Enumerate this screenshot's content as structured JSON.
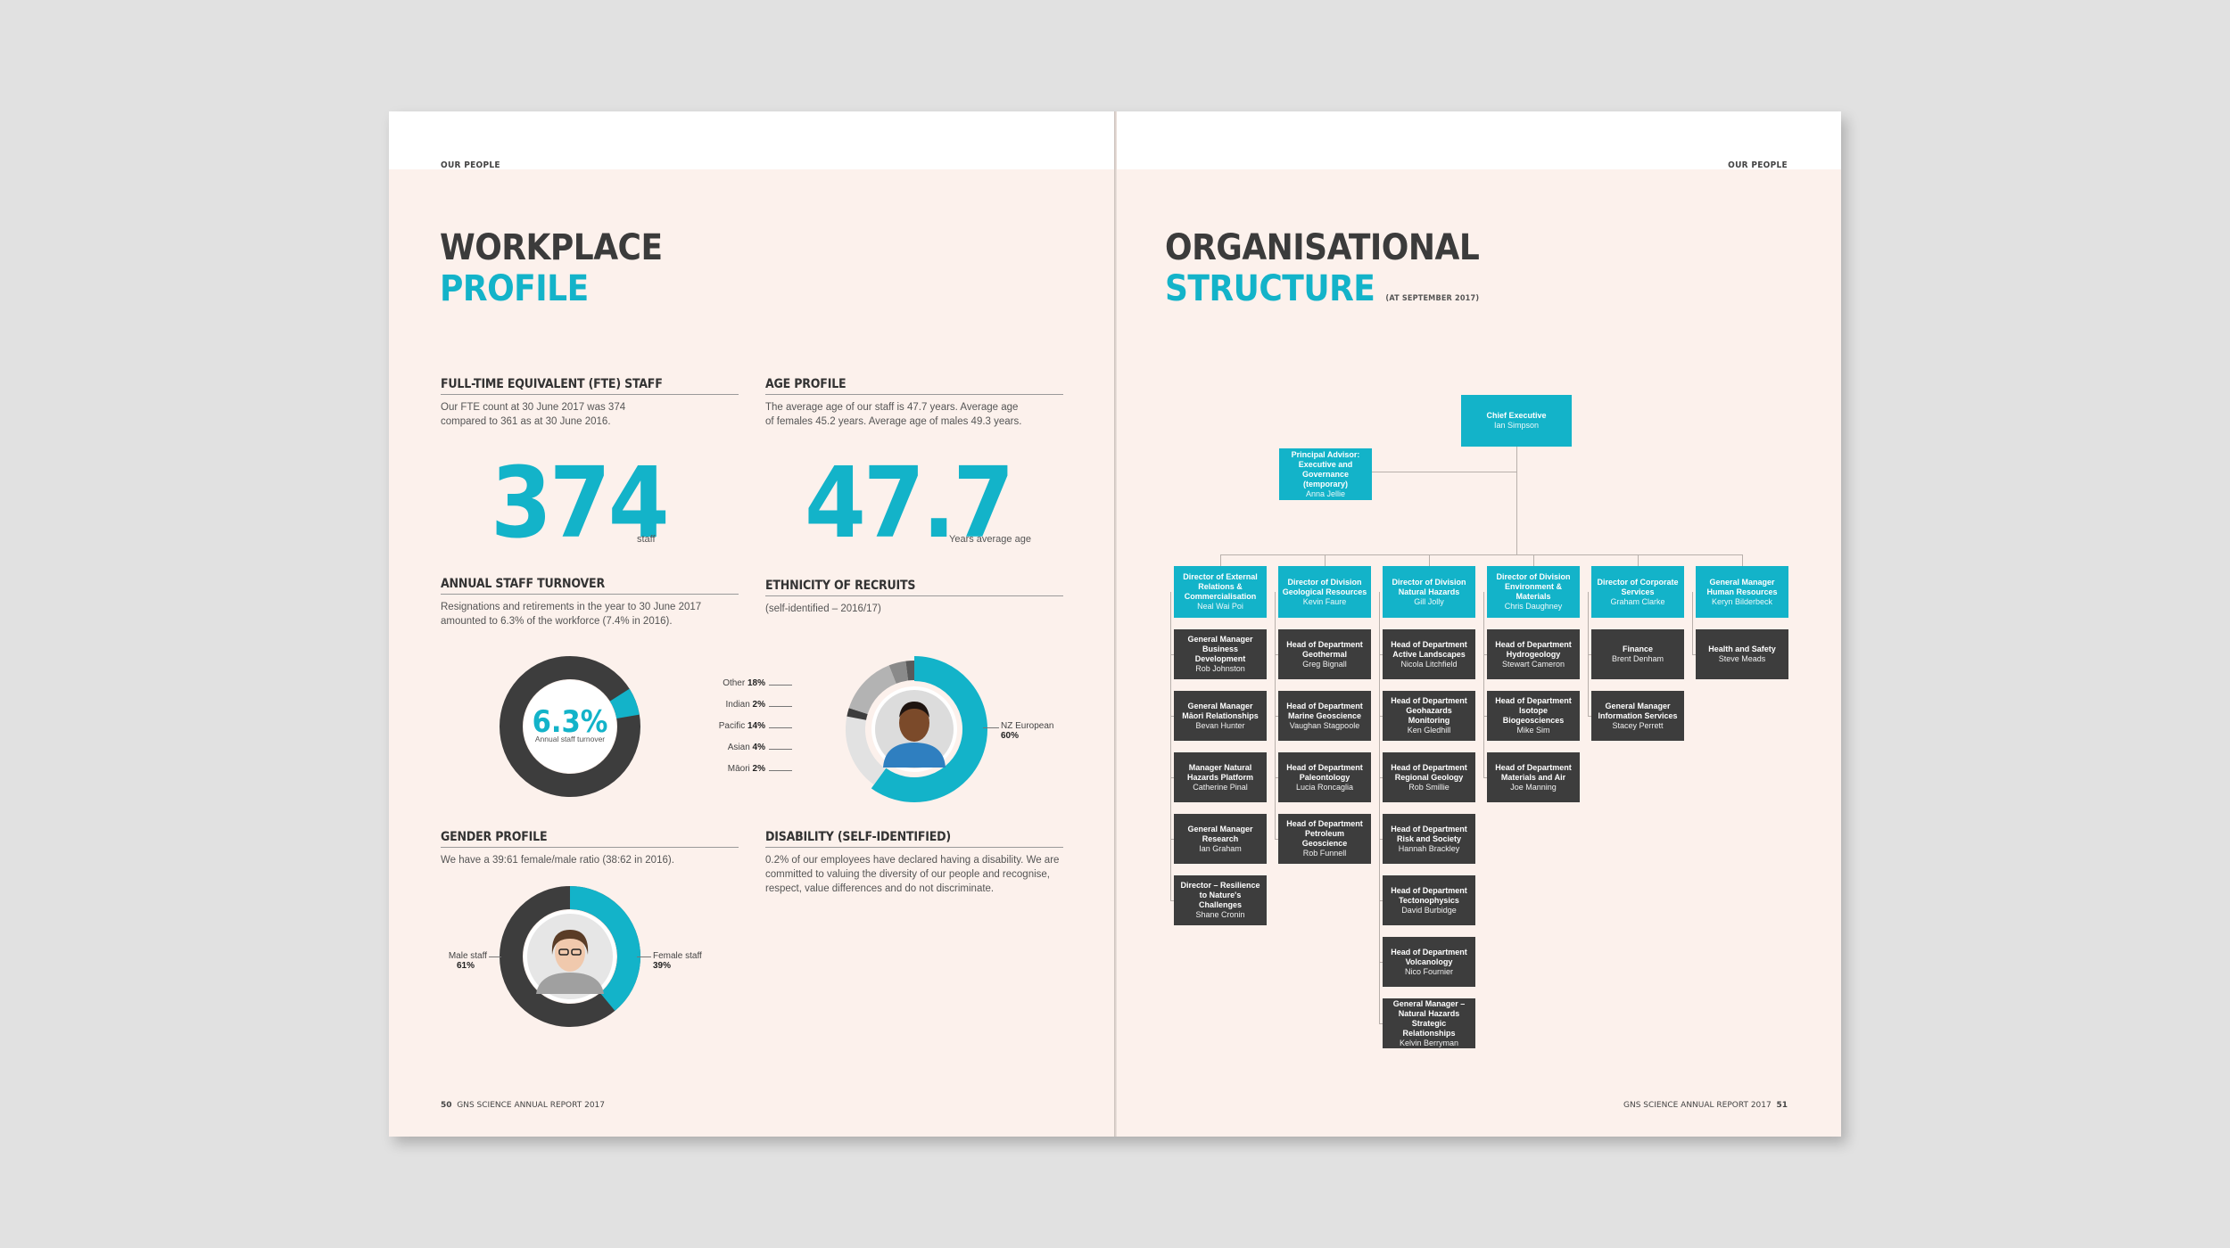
{
  "left": {
    "running_head": "OUR PEOPLE",
    "title_line1": "WORKPLACE",
    "title_line2": "PROFILE",
    "folio_number": "50",
    "folio_text": "GNS SCIENCE ANNUAL REPORT 2017",
    "fte": {
      "heading": "FULL-TIME EQUIVALENT (FTE) STAFF",
      "text": "Our FTE count at 30 June 2017 was 374 compared to 361 as at 30 June 2016.",
      "value": "374",
      "unit": "staff"
    },
    "age": {
      "heading": "AGE PROFILE",
      "text": "The average age of our staff is 47.7 years. Average age of females 45.2 years. Average age of males 49.3 years.",
      "value": "47.7",
      "unit": "Years average age"
    },
    "turnover": {
      "heading": "ANNUAL STAFF TURNOVER",
      "text": "Resignations and retirements in the year to 30 June 2017 amounted to 6.3% of the workforce (7.4% in 2016).",
      "value": "6.3%",
      "caption": "Annual staff turnover",
      "fraction": 0.063
    },
    "ethnicity": {
      "heading": "ETHNICITY OF RECRUITS",
      "text": "(self-identified – 2016/17)",
      "segments": [
        {
          "label": "NZ European",
          "value": "60%",
          "pct": 60,
          "color": "#13b3c9"
        },
        {
          "label": "Other",
          "value": "18%",
          "pct": 18,
          "color": "#e2e2e2"
        },
        {
          "label": "Indian",
          "value": "2%",
          "pct": 2,
          "color": "#3d3d3d"
        },
        {
          "label": "Pacific",
          "value": "14%",
          "pct": 14,
          "color": "#b3b3b3"
        },
        {
          "label": "Asian",
          "value": "4%",
          "pct": 4,
          "color": "#8a8a8a"
        },
        {
          "label": "Māori",
          "value": "2%",
          "pct": 2,
          "color": "#5a5a5a"
        }
      ]
    },
    "gender": {
      "heading": "GENDER PROFILE",
      "text": "We have a 39:61 female/male ratio (38:62 in 2016).",
      "male_label": "Male staff",
      "male_value": "61%",
      "female_label": "Female staff",
      "female_value": "39%",
      "female_fraction": 0.39
    },
    "disability": {
      "heading": "DISABILITY (SELF-IDENTIFIED)",
      "text": "0.2% of our employees have declared having a disability. We are committed to valuing the diversity of our people and recognise, respect, value differences and do not discriminate."
    },
    "colors": {
      "accent": "#13b3c9",
      "dark": "#3d3d3d",
      "page": "#fcf1ec"
    }
  },
  "right": {
    "running_head": "OUR PEOPLE",
    "title_line1": "ORGANISATIONAL",
    "title_line2": "STRUCTURE",
    "title_note": "(AT SEPTEMBER 2017)",
    "folio_number": "51",
    "folio_text": "GNS SCIENCE ANNUAL REPORT 2017",
    "org": {
      "ceo": {
        "role": "Chief Executive",
        "name": "Ian Simpson"
      },
      "advisor": {
        "role": "Principal Advisor: Executive and Governance (temporary)",
        "name": "Anna Jellie"
      },
      "columns": [
        {
          "head": {
            "role": "Director of External Relations & Commercialisation",
            "name": "Neal Wai Poi"
          },
          "reports": [
            {
              "role": "General Manager Business Development",
              "name": "Rob Johnston"
            },
            {
              "role": "General Manager Māori Relationships",
              "name": "Bevan Hunter"
            },
            {
              "role": "Manager Natural Hazards Platform",
              "name": "Catherine Pinal"
            },
            {
              "role": "General Manager Research",
              "name": "Ian Graham"
            },
            {
              "role": "Director – Resilience to Nature's Challenges",
              "name": "Shane Cronin"
            }
          ]
        },
        {
          "head": {
            "role": "Director of Division Geological Resources",
            "name": "Kevin Faure"
          },
          "reports": [
            {
              "role": "Head of Department Geothermal",
              "name": "Greg Bignall"
            },
            {
              "role": "Head of Department Marine Geoscience",
              "name": "Vaughan Stagpoole"
            },
            {
              "role": "Head of Department Paleontology",
              "name": "Lucia Roncaglia"
            },
            {
              "role": "Head of Department Petroleum Geoscience",
              "name": "Rob Funnell"
            }
          ]
        },
        {
          "head": {
            "role": "Director of Division Natural Hazards",
            "name": "Gill Jolly"
          },
          "reports": [
            {
              "role": "Head of Department Active Landscapes",
              "name": "Nicola Litchfield"
            },
            {
              "role": "Head of Department Geohazards Monitoring",
              "name": "Ken Gledhill"
            },
            {
              "role": "Head of Department Regional Geology",
              "name": "Rob Smillie"
            },
            {
              "role": "Head of Department Risk and Society",
              "name": "Hannah Brackley"
            },
            {
              "role": "Head of Department Tectonophysics",
              "name": "David Burbidge"
            },
            {
              "role": "Head of Department Volcanology",
              "name": "Nico Fournier"
            },
            {
              "role": "General Manager – Natural Hazards Strategic Relationships",
              "name": "Kelvin Berryman"
            }
          ]
        },
        {
          "head": {
            "role": "Director of Division Environment & Materials",
            "name": "Chris Daughney"
          },
          "reports": [
            {
              "role": "Head of Department Hydrogeology",
              "name": "Stewart Cameron"
            },
            {
              "role": "Head of Department Isotope Biogeosciences",
              "name": "Mike Sim"
            },
            {
              "role": "Head of Department Materials and Air",
              "name": "Joe Manning"
            }
          ]
        },
        {
          "head": {
            "role": "Director of Corporate Services",
            "name": "Graham Clarke"
          },
          "reports": [
            {
              "role": "Finance",
              "name": "Brent Denham"
            },
            {
              "role": "General Manager Information Services",
              "name": "Stacey Perrett"
            }
          ]
        },
        {
          "head": {
            "role": "General Manager Human Resources",
            "name": "Keryn Bilderbeck"
          },
          "reports": [
            {
              "role": "Health and Safety",
              "name": "Steve Meads"
            }
          ]
        }
      ]
    }
  }
}
